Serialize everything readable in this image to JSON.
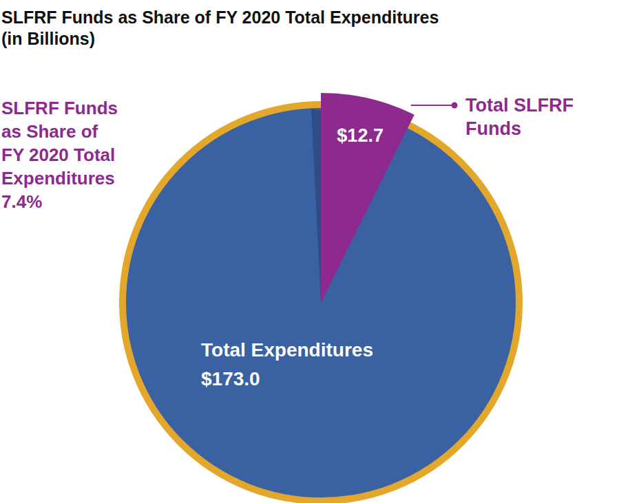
{
  "chart_data": {
    "type": "pie",
    "title": "SLFRF Funds as Share of FY 2020 Total Expenditures",
    "subtitle": "(in Billions)",
    "categories": [
      "Total SLFRF Funds",
      "Total Expenditures"
    ],
    "values": [
      12.7,
      173.0
    ],
    "value_labels": [
      "$12.7",
      "$173.0"
    ],
    "colors": [
      "#8e2a8e",
      "#3a62a3"
    ],
    "data_labels": true,
    "annotation": {
      "text": "SLFRF Funds as Share of FY 2020 Total Expenditures",
      "value": 7.4,
      "label": "7.4%"
    }
  }
}
